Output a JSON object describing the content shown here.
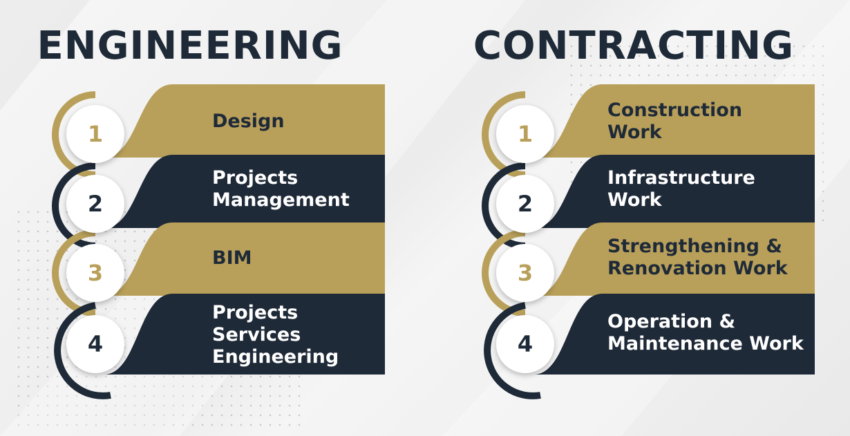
{
  "colors": {
    "gold": "#b9a05a",
    "navy": "#1f2a38",
    "white": "#ffffff"
  },
  "columns": [
    {
      "title": "ENGINEERING",
      "items": [
        {
          "number": "1",
          "label": "Design",
          "color": "gold"
        },
        {
          "number": "2",
          "label": "Projects\nManagement",
          "color": "navy"
        },
        {
          "number": "3",
          "label": "BIM",
          "color": "gold"
        },
        {
          "number": "4",
          "label": "Projects\nServices\nEngineering",
          "color": "navy"
        }
      ]
    },
    {
      "title": "CONTRACTING",
      "items": [
        {
          "number": "1",
          "label": "Construction\nWork",
          "color": "gold"
        },
        {
          "number": "2",
          "label": "Infrastructure\nWork",
          "color": "navy"
        },
        {
          "number": "3",
          "label": "Strengthening &\nRenovation Work",
          "color": "gold"
        },
        {
          "number": "4",
          "label": "Operation &\nMaintenance Work",
          "color": "navy"
        }
      ]
    }
  ]
}
